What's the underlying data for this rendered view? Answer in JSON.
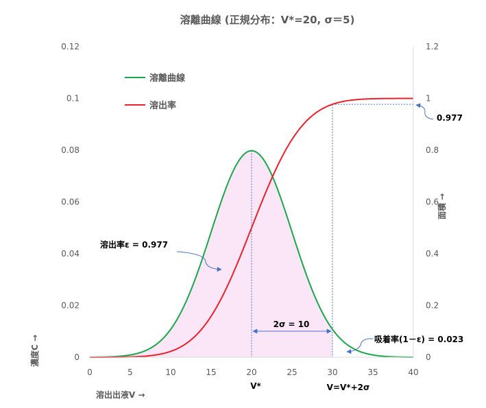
{
  "chart_data": {
    "type": "line",
    "title": "溶離曲線 (正規分布：V*=20, σ＝5)",
    "xlabel": "溶出出液V →",
    "ylabel_left": "濃度C →",
    "ylabel_right": "面積 →",
    "xlim": [
      0,
      40
    ],
    "ylim_left": [
      0,
      0.12
    ],
    "ylim_right": [
      0,
      1.2
    ],
    "x_ticks": [
      0,
      5,
      10,
      15,
      20,
      25,
      30,
      35,
      40
    ],
    "y_left_ticks": [
      "0",
      "0.02",
      "0.04",
      "0.06",
      "0.08",
      "0.1",
      "0.12"
    ],
    "y_right_ticks": [
      "0",
      "0.2",
      "0.4",
      "0.6",
      "0.8",
      "1",
      "1.2"
    ],
    "distribution": {
      "mean": 20,
      "sigma": 5
    },
    "series": [
      {
        "name": "溶離曲線",
        "axis": "left",
        "color": "#1aa64a",
        "kind": "normal-pdf"
      },
      {
        "name": "溶出率",
        "axis": "right",
        "color": "#e8212a",
        "kind": "normal-cdf"
      }
    ],
    "shaded_region": {
      "x_from": 0,
      "x_to": 30,
      "color": "#fbe6f7"
    },
    "reference_lines": [
      {
        "x": 20,
        "label": "V*"
      },
      {
        "x": 30,
        "label": "V=V*+2σ"
      }
    ],
    "annotations": {
      "cdf_value": "0.977",
      "elution_rate": "溶出率ε = 0.977",
      "span": "2σ = 10",
      "adsorption": "吸着率(1－ε) = 0.023"
    },
    "legend_position": "top-left",
    "grid": false
  },
  "colors": {
    "ref_line": "#4472c4",
    "axis": "#d9d9d9"
  }
}
